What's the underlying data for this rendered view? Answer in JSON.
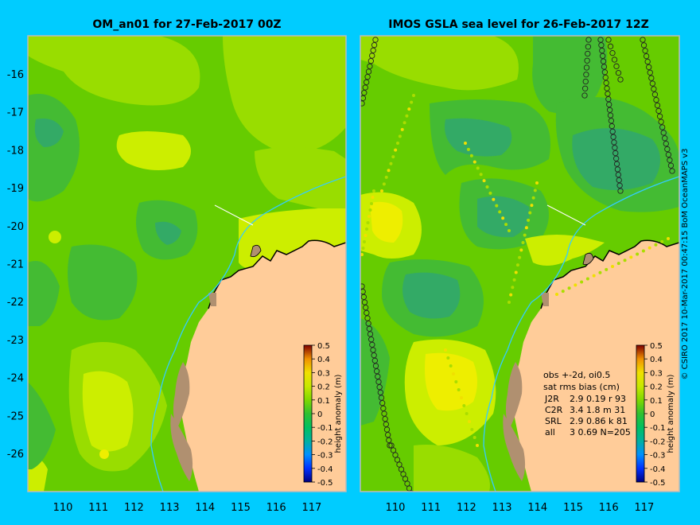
{
  "left_panel": {
    "title": "OM_an01 for 27-Feb-2017 00Z"
  },
  "right_panel": {
    "title": "IMOS GSLA sea level  for 26-Feb-2017 12Z",
    "stats": {
      "header1": "obs +-2d, oi0.5",
      "header2": "sat rms bias (cm)",
      "rows": [
        {
          "sat": "J2R",
          "values": "2.9 0.19 r 93"
        },
        {
          "sat": "C2R",
          "values": "3.4 1.8 m 31"
        },
        {
          "sat": "SRL",
          "values": "2.9 0.86 k 81"
        },
        {
          "sat": "all",
          "values": "3 0.69 N=205"
        }
      ]
    }
  },
  "axes": {
    "x_ticks": [
      "110",
      "111",
      "112",
      "113",
      "114",
      "115",
      "116",
      "117"
    ],
    "y_ticks": [
      "-16",
      "-17",
      "-18",
      "-19",
      "-20",
      "-21",
      "-22",
      "-23",
      "-24",
      "-25",
      "-26"
    ]
  },
  "colorbar": {
    "ticks": [
      "0.5",
      "0.4",
      "0.3",
      "0.2",
      "0.1",
      "0",
      "-0.1",
      "-0.2",
      "-0.3",
      "-0.4",
      "-0.5"
    ],
    "label": "height anomaly (m)",
    "colors": [
      "#000080",
      "#0030ff",
      "#0090ff",
      "#00b0a0",
      "#00c060",
      "#30c030",
      "#80d800",
      "#c8e800",
      "#f0e000",
      "#f09000",
      "#c03000",
      "#800000"
    ]
  },
  "credit": "© CSIRO 2017   10-Mar-2017 00:47:15 BoM OceanMAPS v3",
  "palette": {
    "background": "#00ccff",
    "land": "#ffcc99",
    "island": "#b09070",
    "isobath": "#33ccff",
    "base_green": "#66cc00",
    "yellow_green": "#ccee00",
    "teal": "#33aa66"
  }
}
